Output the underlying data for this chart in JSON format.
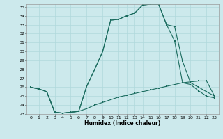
{
  "title": "",
  "xlabel": "Humidex (Indice chaleur)",
  "bg_color": "#cce9ec",
  "line_color": "#1a6b5e",
  "grid_color": "#b0d8dc",
  "xlim": [
    -0.5,
    23.5
  ],
  "ylim": [
    23,
    35.3
  ],
  "yticks": [
    23,
    24,
    25,
    26,
    27,
    28,
    29,
    30,
    31,
    32,
    33,
    34,
    35
  ],
  "xticks": [
    0,
    1,
    2,
    3,
    4,
    5,
    6,
    7,
    8,
    9,
    10,
    11,
    12,
    13,
    14,
    15,
    16,
    17,
    18,
    19,
    20,
    21,
    22,
    23
  ],
  "line1_x": [
    0,
    1,
    2,
    3,
    4,
    5,
    6,
    7,
    8,
    9,
    10,
    11,
    12,
    13,
    14,
    15,
    16,
    17,
    18,
    19,
    20,
    21,
    22,
    23
  ],
  "line1_y": [
    26.0,
    25.8,
    25.5,
    23.2,
    23.1,
    23.2,
    23.3,
    23.6,
    24.0,
    24.3,
    24.6,
    24.9,
    25.1,
    25.3,
    25.5,
    25.7,
    25.9,
    26.1,
    26.3,
    26.5,
    26.6,
    26.7,
    26.7,
    25.0
  ],
  "line2_x": [
    0,
    1,
    2,
    3,
    4,
    5,
    6,
    7,
    8,
    9,
    10,
    11,
    12,
    13,
    14,
    15,
    16,
    17,
    18,
    19,
    20,
    21,
    22,
    23
  ],
  "line2_y": [
    26.0,
    25.8,
    25.5,
    23.2,
    23.1,
    23.2,
    23.3,
    26.1,
    28.0,
    30.0,
    33.5,
    33.6,
    34.0,
    34.3,
    35.2,
    35.3,
    35.3,
    33.0,
    31.2,
    26.5,
    26.3,
    25.6,
    25.0,
    24.8
  ],
  "line3_x": [
    0,
    1,
    2,
    3,
    4,
    5,
    6,
    7,
    8,
    9,
    10,
    11,
    12,
    13,
    14,
    15,
    16,
    17,
    18,
    19,
    20,
    21,
    22,
    23
  ],
  "line3_y": [
    26.0,
    25.8,
    25.5,
    23.2,
    23.1,
    23.2,
    23.3,
    26.1,
    28.0,
    30.0,
    33.5,
    33.6,
    34.0,
    34.3,
    35.2,
    35.3,
    35.3,
    33.0,
    32.8,
    28.9,
    26.5,
    26.0,
    25.5,
    25.0
  ]
}
